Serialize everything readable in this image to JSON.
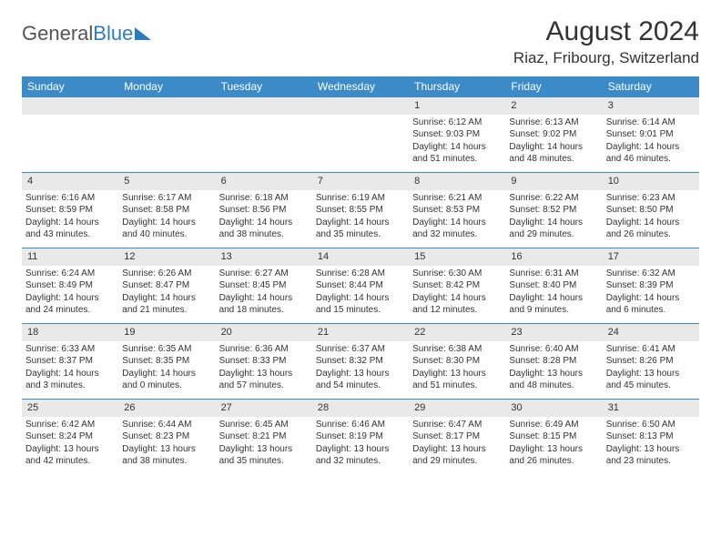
{
  "logo": {
    "text_gray": "General",
    "text_blue": "Blue"
  },
  "header": {
    "month_title": "August 2024",
    "location": "Riaz, Fribourg, Switzerland"
  },
  "calendar": {
    "weekdays": [
      "Sunday",
      "Monday",
      "Tuesday",
      "Wednesday",
      "Thursday",
      "Friday",
      "Saturday"
    ],
    "header_bg": "#3b8bc9",
    "header_fg": "#ffffff",
    "daynum_bg": "#e9e9e9",
    "border_color": "#3b8bc9",
    "text_color": "#333333",
    "font_size_body": 10,
    "font_size_header": 12,
    "weeks": [
      [
        {
          "empty": true
        },
        {
          "empty": true
        },
        {
          "empty": true
        },
        {
          "empty": true
        },
        {
          "day": "1",
          "sunrise": "Sunrise: 6:12 AM",
          "sunset": "Sunset: 9:03 PM",
          "daylight1": "Daylight: 14 hours",
          "daylight2": "and 51 minutes."
        },
        {
          "day": "2",
          "sunrise": "Sunrise: 6:13 AM",
          "sunset": "Sunset: 9:02 PM",
          "daylight1": "Daylight: 14 hours",
          "daylight2": "and 48 minutes."
        },
        {
          "day": "3",
          "sunrise": "Sunrise: 6:14 AM",
          "sunset": "Sunset: 9:01 PM",
          "daylight1": "Daylight: 14 hours",
          "daylight2": "and 46 minutes."
        }
      ],
      [
        {
          "day": "4",
          "sunrise": "Sunrise: 6:16 AM",
          "sunset": "Sunset: 8:59 PM",
          "daylight1": "Daylight: 14 hours",
          "daylight2": "and 43 minutes."
        },
        {
          "day": "5",
          "sunrise": "Sunrise: 6:17 AM",
          "sunset": "Sunset: 8:58 PM",
          "daylight1": "Daylight: 14 hours",
          "daylight2": "and 40 minutes."
        },
        {
          "day": "6",
          "sunrise": "Sunrise: 6:18 AM",
          "sunset": "Sunset: 8:56 PM",
          "daylight1": "Daylight: 14 hours",
          "daylight2": "and 38 minutes."
        },
        {
          "day": "7",
          "sunrise": "Sunrise: 6:19 AM",
          "sunset": "Sunset: 8:55 PM",
          "daylight1": "Daylight: 14 hours",
          "daylight2": "and 35 minutes."
        },
        {
          "day": "8",
          "sunrise": "Sunrise: 6:21 AM",
          "sunset": "Sunset: 8:53 PM",
          "daylight1": "Daylight: 14 hours",
          "daylight2": "and 32 minutes."
        },
        {
          "day": "9",
          "sunrise": "Sunrise: 6:22 AM",
          "sunset": "Sunset: 8:52 PM",
          "daylight1": "Daylight: 14 hours",
          "daylight2": "and 29 minutes."
        },
        {
          "day": "10",
          "sunrise": "Sunrise: 6:23 AM",
          "sunset": "Sunset: 8:50 PM",
          "daylight1": "Daylight: 14 hours",
          "daylight2": "and 26 minutes."
        }
      ],
      [
        {
          "day": "11",
          "sunrise": "Sunrise: 6:24 AM",
          "sunset": "Sunset: 8:49 PM",
          "daylight1": "Daylight: 14 hours",
          "daylight2": "and 24 minutes."
        },
        {
          "day": "12",
          "sunrise": "Sunrise: 6:26 AM",
          "sunset": "Sunset: 8:47 PM",
          "daylight1": "Daylight: 14 hours",
          "daylight2": "and 21 minutes."
        },
        {
          "day": "13",
          "sunrise": "Sunrise: 6:27 AM",
          "sunset": "Sunset: 8:45 PM",
          "daylight1": "Daylight: 14 hours",
          "daylight2": "and 18 minutes."
        },
        {
          "day": "14",
          "sunrise": "Sunrise: 6:28 AM",
          "sunset": "Sunset: 8:44 PM",
          "daylight1": "Daylight: 14 hours",
          "daylight2": "and 15 minutes."
        },
        {
          "day": "15",
          "sunrise": "Sunrise: 6:30 AM",
          "sunset": "Sunset: 8:42 PM",
          "daylight1": "Daylight: 14 hours",
          "daylight2": "and 12 minutes."
        },
        {
          "day": "16",
          "sunrise": "Sunrise: 6:31 AM",
          "sunset": "Sunset: 8:40 PM",
          "daylight1": "Daylight: 14 hours",
          "daylight2": "and 9 minutes."
        },
        {
          "day": "17",
          "sunrise": "Sunrise: 6:32 AM",
          "sunset": "Sunset: 8:39 PM",
          "daylight1": "Daylight: 14 hours",
          "daylight2": "and 6 minutes."
        }
      ],
      [
        {
          "day": "18",
          "sunrise": "Sunrise: 6:33 AM",
          "sunset": "Sunset: 8:37 PM",
          "daylight1": "Daylight: 14 hours",
          "daylight2": "and 3 minutes."
        },
        {
          "day": "19",
          "sunrise": "Sunrise: 6:35 AM",
          "sunset": "Sunset: 8:35 PM",
          "daylight1": "Daylight: 14 hours",
          "daylight2": "and 0 minutes."
        },
        {
          "day": "20",
          "sunrise": "Sunrise: 6:36 AM",
          "sunset": "Sunset: 8:33 PM",
          "daylight1": "Daylight: 13 hours",
          "daylight2": "and 57 minutes."
        },
        {
          "day": "21",
          "sunrise": "Sunrise: 6:37 AM",
          "sunset": "Sunset: 8:32 PM",
          "daylight1": "Daylight: 13 hours",
          "daylight2": "and 54 minutes."
        },
        {
          "day": "22",
          "sunrise": "Sunrise: 6:38 AM",
          "sunset": "Sunset: 8:30 PM",
          "daylight1": "Daylight: 13 hours",
          "daylight2": "and 51 minutes."
        },
        {
          "day": "23",
          "sunrise": "Sunrise: 6:40 AM",
          "sunset": "Sunset: 8:28 PM",
          "daylight1": "Daylight: 13 hours",
          "daylight2": "and 48 minutes."
        },
        {
          "day": "24",
          "sunrise": "Sunrise: 6:41 AM",
          "sunset": "Sunset: 8:26 PM",
          "daylight1": "Daylight: 13 hours",
          "daylight2": "and 45 minutes."
        }
      ],
      [
        {
          "day": "25",
          "sunrise": "Sunrise: 6:42 AM",
          "sunset": "Sunset: 8:24 PM",
          "daylight1": "Daylight: 13 hours",
          "daylight2": "and 42 minutes."
        },
        {
          "day": "26",
          "sunrise": "Sunrise: 6:44 AM",
          "sunset": "Sunset: 8:23 PM",
          "daylight1": "Daylight: 13 hours",
          "daylight2": "and 38 minutes."
        },
        {
          "day": "27",
          "sunrise": "Sunrise: 6:45 AM",
          "sunset": "Sunset: 8:21 PM",
          "daylight1": "Daylight: 13 hours",
          "daylight2": "and 35 minutes."
        },
        {
          "day": "28",
          "sunrise": "Sunrise: 6:46 AM",
          "sunset": "Sunset: 8:19 PM",
          "daylight1": "Daylight: 13 hours",
          "daylight2": "and 32 minutes."
        },
        {
          "day": "29",
          "sunrise": "Sunrise: 6:47 AM",
          "sunset": "Sunset: 8:17 PM",
          "daylight1": "Daylight: 13 hours",
          "daylight2": "and 29 minutes."
        },
        {
          "day": "30",
          "sunrise": "Sunrise: 6:49 AM",
          "sunset": "Sunset: 8:15 PM",
          "daylight1": "Daylight: 13 hours",
          "daylight2": "and 26 minutes."
        },
        {
          "day": "31",
          "sunrise": "Sunrise: 6:50 AM",
          "sunset": "Sunset: 8:13 PM",
          "daylight1": "Daylight: 13 hours",
          "daylight2": "and 23 minutes."
        }
      ]
    ]
  }
}
